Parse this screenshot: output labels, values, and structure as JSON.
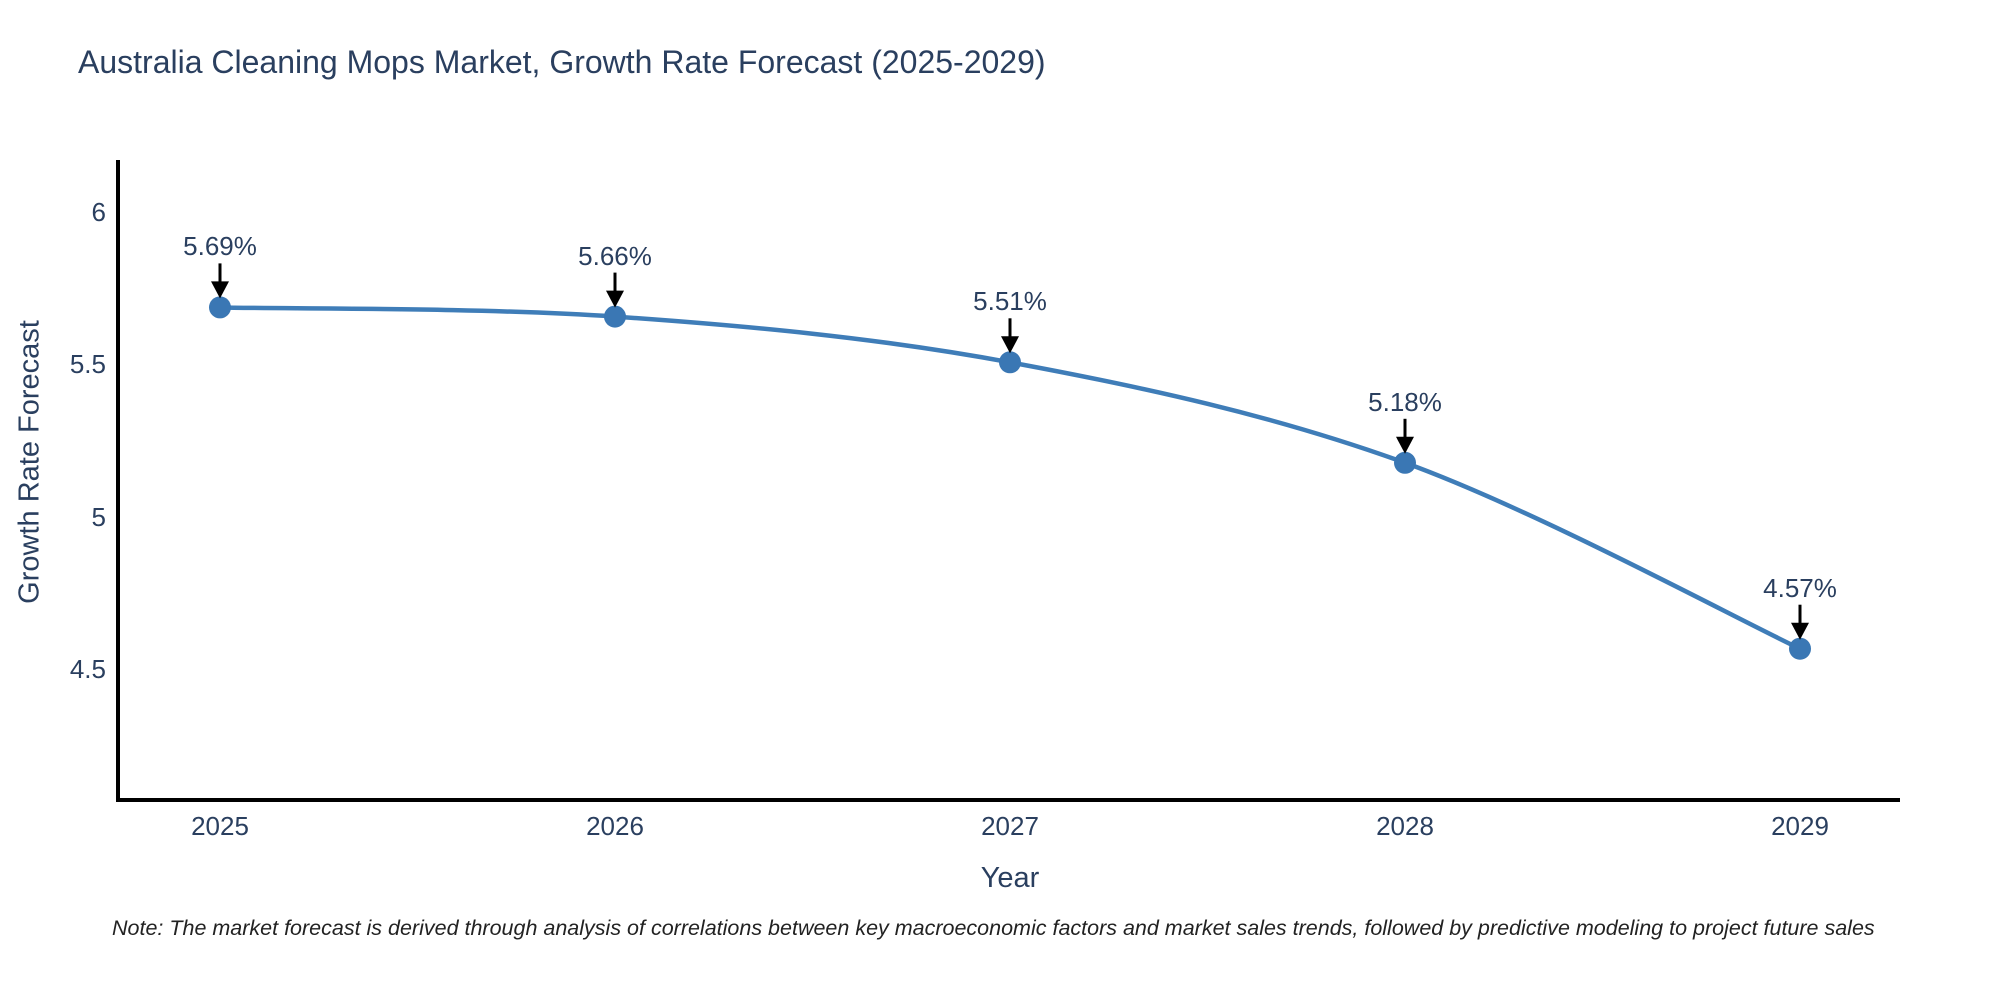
{
  "note": "Note: The market forecast is derived through analysis of correlations between key macroeconomic factors and market sales trends, followed by predictive modeling to project future sales",
  "chart_data": {
    "type": "line",
    "title": "Australia Cleaning Mops Market, Growth Rate Forecast (2025-2029)",
    "xlabel": "Year",
    "ylabel": "Growth Rate Forecast",
    "x": [
      2025,
      2026,
      2027,
      2028,
      2029
    ],
    "y": [
      5.69,
      5.66,
      5.51,
      5.18,
      4.57
    ],
    "point_labels": [
      "5.69%",
      "5.66%",
      "5.51%",
      "5.18%",
      "4.57%"
    ],
    "xticks": [
      2025,
      2026,
      2027,
      2028,
      2029
    ],
    "yticks": [
      4.5,
      5,
      5.5,
      6
    ],
    "xlim": [
      2024.74,
      2029.26
    ],
    "ylim": [
      4.07,
      6.17
    ],
    "line_shape": "spline",
    "grid": false,
    "legend": "none",
    "marker": "circle",
    "annotation_arrows": "down",
    "colors": {
      "line": "#3f7db8",
      "marker": "#3a77b4",
      "text": "#2a3f5f",
      "axis": "#000000",
      "arrow": "#000000",
      "note_text": "#222222",
      "background": "#ffffff"
    }
  }
}
